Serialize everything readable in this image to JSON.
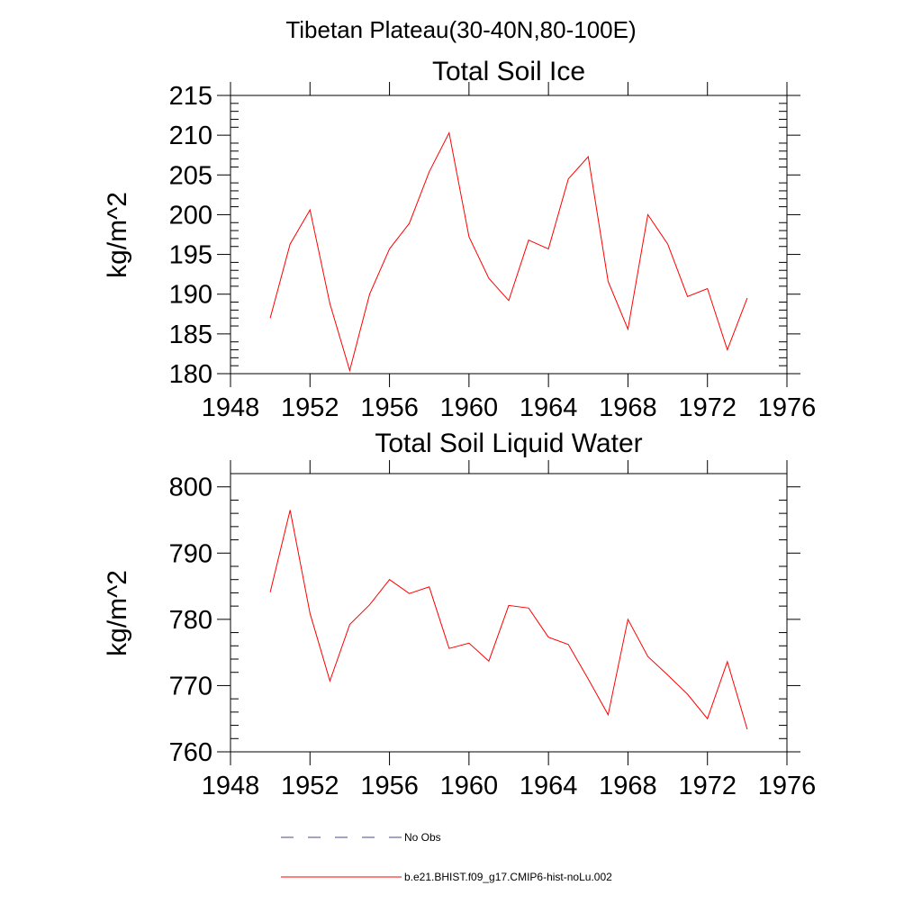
{
  "figure": {
    "suptitle": "Tibetan Plateau(30-40N,80-100E)"
  },
  "chart_data": [
    {
      "type": "line",
      "title": "Total Soil Ice",
      "xlabel": "",
      "ylabel": "kg/m^2",
      "xlim": [
        1948,
        1976
      ],
      "ylim": [
        180,
        215
      ],
      "xticks": [
        1948,
        1952,
        1956,
        1960,
        1964,
        1968,
        1972,
        1976
      ],
      "yticks": [
        180,
        185,
        190,
        195,
        200,
        205,
        210,
        215
      ],
      "grid": false,
      "series": [
        {
          "name": "b.e21.BHIST.f09_g17.CMIP6-hist-noLu.002",
          "color": "#ff0000",
          "x": [
            1950,
            1951,
            1952,
            1953,
            1954,
            1955,
            1956,
            1957,
            1958,
            1959,
            1960,
            1961,
            1962,
            1963,
            1964,
            1965,
            1966,
            1967,
            1968,
            1969,
            1970,
            1971,
            1972,
            1973,
            1974
          ],
          "values": [
            187.0,
            196.3,
            200.6,
            188.8,
            180.4,
            190.0,
            195.7,
            198.9,
            205.4,
            210.3,
            197.2,
            192.0,
            189.2,
            196.8,
            195.7,
            204.5,
            207.3,
            191.6,
            185.6,
            200.0,
            196.3,
            189.7,
            190.7,
            183.0,
            189.5
          ]
        }
      ]
    },
    {
      "type": "line",
      "title": "Total Soil Liquid Water",
      "xlabel": "",
      "ylabel": "kg/m^2",
      "xlim": [
        1948,
        1976
      ],
      "ylim": [
        760,
        802
      ],
      "xticks": [
        1948,
        1952,
        1956,
        1960,
        1964,
        1968,
        1972,
        1976
      ],
      "yticks": [
        760,
        770,
        780,
        790,
        800
      ],
      "grid": false,
      "series": [
        {
          "name": "b.e21.BHIST.f09_g17.CMIP6-hist-noLu.002",
          "color": "#ff0000",
          "x": [
            1950,
            1951,
            1952,
            1953,
            1954,
            1955,
            1956,
            1957,
            1958,
            1959,
            1960,
            1961,
            1962,
            1963,
            1964,
            1965,
            1966,
            1967,
            1968,
            1969,
            1970,
            1971,
            1972,
            1973,
            1974
          ],
          "values": [
            784.1,
            796.5,
            780.9,
            770.7,
            779.2,
            782.2,
            786.0,
            783.9,
            784.9,
            775.6,
            776.4,
            773.7,
            782.1,
            781.7,
            777.3,
            776.2,
            771.0,
            765.6,
            780.0,
            774.4,
            771.6,
            768.7,
            765.0,
            773.6,
            763.4
          ]
        }
      ]
    }
  ],
  "legend": {
    "position": "bottom",
    "items": [
      {
        "label": "No Obs",
        "color": "#4a4a8a",
        "style": "dashed"
      },
      {
        "label": "b.e21.BHIST.f09_g17.CMIP6-hist-noLu.002",
        "color": "#ff0000",
        "style": "solid"
      }
    ]
  }
}
